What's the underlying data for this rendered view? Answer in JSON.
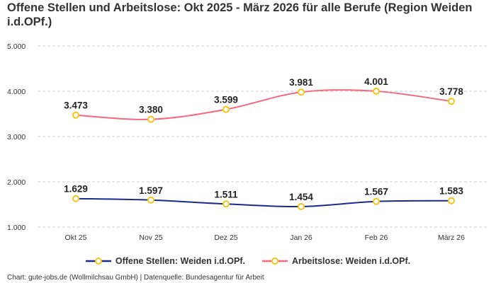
{
  "chart_data": {
    "type": "line",
    "title": "Offene Stellen und Arbeitslose: Okt 2025 - März 2026 für alle Berufe (Region Weiden i.d.OPf.)",
    "categories": [
      "Okt 25",
      "Nov 25",
      "Dez 25",
      "Jan 26",
      "Feb 26",
      "März 26"
    ],
    "ylim": [
      1000,
      5000
    ],
    "yticks": [
      1000,
      2000,
      3000,
      4000,
      5000
    ],
    "ytick_labels": [
      "1.000",
      "2.000",
      "3.000",
      "4.000",
      "5.000"
    ],
    "grid": true,
    "smooth": true,
    "legend_position": "bottom",
    "marker_color": "#f5c518",
    "series": [
      {
        "name": "Offene Stellen: Weiden i.d.OPf.",
        "color": "#1a2b8c",
        "values": [
          1629,
          1597,
          1511,
          1454,
          1567,
          1583
        ],
        "labels": [
          "1.629",
          "1.597",
          "1.511",
          "1.454",
          "1.567",
          "1.583"
        ]
      },
      {
        "name": "Arbeitslose: Weiden i.d.OPf.",
        "color": "#f7677f",
        "values": [
          3473,
          3380,
          3599,
          3981,
          4001,
          3778
        ],
        "labels": [
          "3.473",
          "3.380",
          "3.599",
          "3.981",
          "4.001",
          "3.778"
        ]
      }
    ]
  },
  "footer": "Chart: gute-jobs.de (Wollmilchsau GmbH) | Datenquelle: Bundesagentur für Arbeit"
}
